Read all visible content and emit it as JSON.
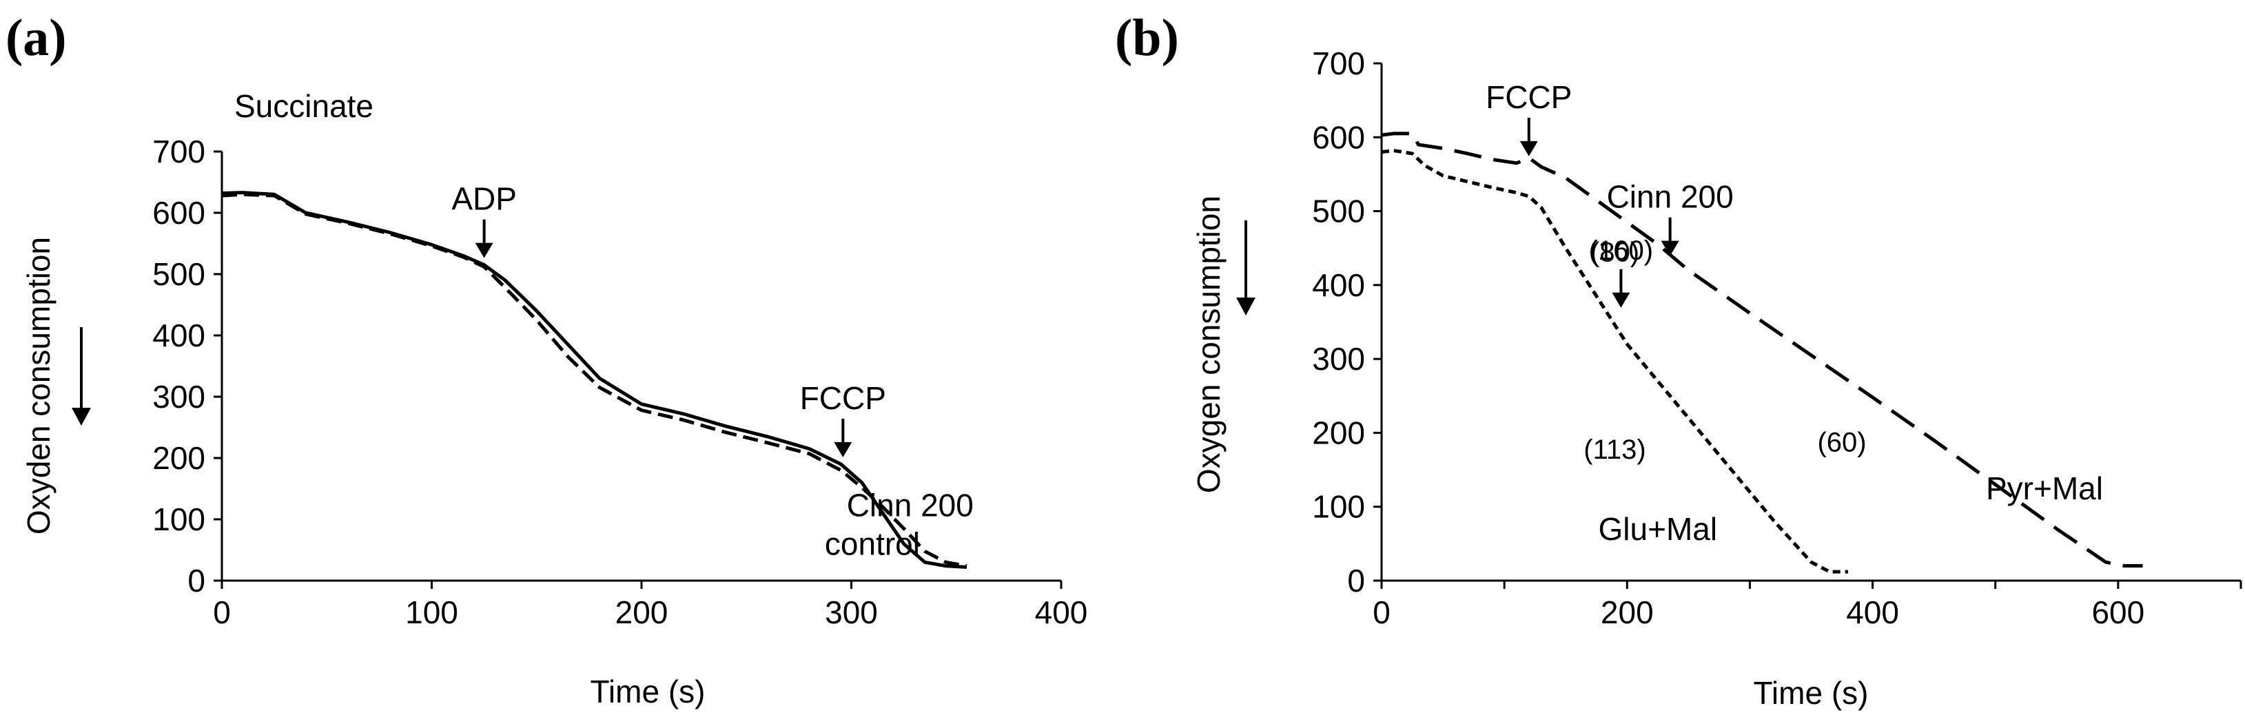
{
  "chart_data": [
    {
      "type": "line",
      "panel_label": "(a)",
      "title": "Succinate",
      "xlabel": "Time (s)",
      "ylabel": "Oxyden consumption",
      "xlim": [
        0,
        400
      ],
      "ylim": [
        0,
        700
      ],
      "xticks": [
        0,
        100,
        200,
        300,
        400
      ],
      "yticks": [
        0,
        100,
        200,
        300,
        400,
        500,
        600,
        700
      ],
      "series": [
        {
          "name": "control",
          "style": "solid",
          "x": [
            0,
            10,
            25,
            40,
            60,
            80,
            100,
            115,
            125,
            135,
            150,
            165,
            180,
            200,
            220,
            240,
            260,
            280,
            295,
            305,
            315,
            325,
            335,
            345,
            355
          ],
          "y": [
            632,
            633,
            630,
            600,
            585,
            568,
            548,
            530,
            515,
            490,
            440,
            385,
            330,
            288,
            272,
            252,
            235,
            215,
            190,
            160,
            110,
            60,
            30,
            24,
            22
          ]
        },
        {
          "name": "Cinn 200",
          "style": "dashed",
          "x": [
            0,
            10,
            25,
            40,
            60,
            80,
            100,
            115,
            125,
            135,
            150,
            165,
            180,
            200,
            220,
            240,
            260,
            280,
            295,
            305,
            315,
            325,
            335,
            345,
            355
          ],
          "y": [
            628,
            630,
            628,
            598,
            583,
            566,
            546,
            528,
            512,
            478,
            425,
            365,
            315,
            278,
            262,
            242,
            225,
            207,
            180,
            152,
            120,
            85,
            48,
            30,
            24
          ]
        }
      ],
      "annotations": [
        {
          "text": "ADP",
          "x": 125,
          "y": 515,
          "arrow": true
        },
        {
          "text": "FCCP",
          "x": 296,
          "y": 190,
          "arrow": true
        },
        {
          "text": "Cinn 200",
          "x": 328,
          "y": 105
        },
        {
          "text": "control",
          "x": 310,
          "y": 42
        }
      ]
    },
    {
      "type": "line",
      "panel_label": "(b)",
      "title": "",
      "xlabel": "Time (s)",
      "ylabel": "Oxygen consumption",
      "xlim": [
        0,
        700
      ],
      "ylim": [
        0,
        700
      ],
      "xticks": [
        0,
        200,
        400,
        600
      ],
      "yticks": [
        0,
        100,
        200,
        300,
        400,
        500,
        600,
        700
      ],
      "series": [
        {
          "name": "Glu+Mal",
          "style": "short-dashed",
          "x": [
            0,
            10,
            25,
            35,
            50,
            70,
            90,
            110,
            120,
            130,
            150,
            175,
            200,
            230,
            260,
            290,
            320,
            350,
            365,
            380
          ],
          "y": [
            580,
            582,
            578,
            562,
            548,
            540,
            532,
            525,
            520,
            505,
            450,
            385,
            320,
            260,
            200,
            140,
            80,
            25,
            12,
            12
          ]
        },
        {
          "name": "Pyr+Mal",
          "style": "long-dashed",
          "x": [
            0,
            10,
            25,
            30,
            50,
            70,
            90,
            110,
            120,
            130,
            150,
            175,
            200,
            225,
            250,
            300,
            350,
            400,
            450,
            500,
            550,
            590,
            605,
            620
          ],
          "y": [
            603,
            605,
            605,
            590,
            585,
            578,
            570,
            565,
            572,
            560,
            545,
            515,
            485,
            455,
            420,
            362,
            305,
            248,
            190,
            130,
            70,
            25,
            20,
            20
          ]
        }
      ],
      "annotations": [
        {
          "text": "FCCP",
          "x": 120,
          "y": 565,
          "arrow": true
        },
        {
          "text": "Cinn 200",
          "x": 235,
          "y": 430,
          "arrow": true
        },
        {
          "text": "(80)",
          "x": 190,
          "y": 432
        },
        {
          "text": "(160)",
          "x": 195,
          "y": 360,
          "arrow": true
        },
        {
          "text": "(113)",
          "x": 190,
          "y": 165
        },
        {
          "text": "(60)",
          "x": 375,
          "y": 175
        },
        {
          "text": "Glu+Mal",
          "x": 225,
          "y": 55
        },
        {
          "text": "Pyr+Mal",
          "x": 540,
          "y": 110
        }
      ]
    }
  ]
}
